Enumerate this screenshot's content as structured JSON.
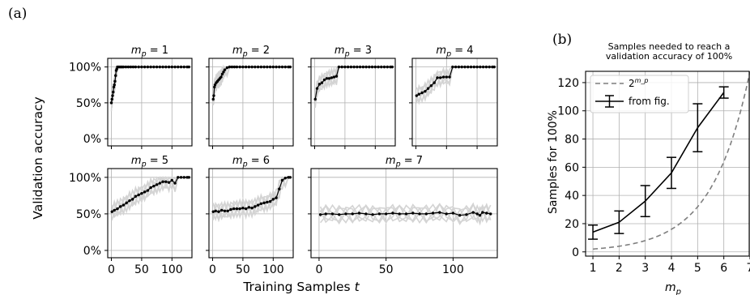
{
  "panel_labels": {
    "a": "(a)",
    "b": "(b)"
  },
  "chart_data": [
    {
      "type": "line",
      "panel": "(a)",
      "ylabel": "Validation accuracy",
      "xlabel": "Training Samples t",
      "y_tick_labels": [
        "0%",
        "50%",
        "100%"
      ],
      "x_tick_labels": [
        "0",
        "50",
        "100"
      ],
      "ylim": [
        -0.1,
        1.12
      ],
      "grid": true,
      "subplots": [
        {
          "title": "m_p = 1",
          "mp": "1",
          "xlim": [
            -6,
            133
          ],
          "series": [
            {
              "x": [
                0,
                1,
                2,
                3,
                4,
                5,
                6,
                7,
                8,
                9,
                10,
                12,
                14,
                16,
                18,
                20,
                24,
                28,
                32,
                36,
                40,
                45,
                50,
                55,
                60,
                65,
                70,
                75,
                80,
                85,
                90,
                95,
                100,
                105,
                110,
                115,
                120,
                125,
                128
              ],
              "y": [
                0.5,
                0.55,
                0.6,
                0.65,
                0.72,
                0.75,
                0.8,
                0.88,
                0.95,
                0.97,
                1,
                1,
                1,
                1,
                1,
                1,
                1,
                1,
                1,
                1,
                1,
                1,
                1,
                1,
                1,
                1,
                1,
                1,
                1,
                1,
                1,
                1,
                1,
                1,
                1,
                1,
                1,
                1,
                1
              ]
            }
          ]
        },
        {
          "title": "m_p = 2",
          "mp": "2",
          "xlim": [
            -6,
            133
          ],
          "series": [
            {
              "x": [
                1,
                2,
                3,
                4,
                6,
                8,
                10,
                12,
                14,
                16,
                18,
                20,
                24,
                28,
                32,
                36,
                40,
                45,
                50,
                55,
                60,
                65,
                70,
                75,
                80,
                85,
                90,
                95,
                100,
                105,
                110,
                115,
                120,
                125,
                128
              ],
              "y": [
                0.55,
                0.6,
                0.72,
                0.75,
                0.78,
                0.8,
                0.82,
                0.84,
                0.86,
                0.9,
                0.93,
                0.96,
                0.99,
                1,
                1,
                1,
                1,
                1,
                1,
                1,
                1,
                1,
                1,
                1,
                1,
                1,
                1,
                1,
                1,
                1,
                1,
                1,
                1,
                1,
                1
              ]
            }
          ]
        },
        {
          "title": "m_p = 3",
          "mp": "3",
          "xlim": [
            -6,
            133
          ],
          "series": [
            {
              "x": [
                1,
                4,
                8,
                12,
                16,
                20,
                24,
                28,
                32,
                36,
                40,
                45,
                50,
                55,
                60,
                65,
                70,
                75,
                80,
                85,
                90,
                95,
                100,
                105,
                110,
                115,
                120,
                125,
                128
              ],
              "y": [
                0.55,
                0.7,
                0.76,
                0.78,
                0.82,
                0.84,
                0.84,
                0.85,
                0.86,
                0.87,
                1,
                1,
                1,
                1,
                1,
                1,
                1,
                1,
                1,
                1,
                1,
                1,
                1,
                1,
                1,
                1,
                1,
                1,
                1
              ]
            }
          ]
        },
        {
          "title": "m_p = 4",
          "mp": "4",
          "xlim": [
            -6,
            133
          ],
          "series": [
            {
              "x": [
                1,
                5,
                10,
                15,
                20,
                25,
                30,
                35,
                40,
                45,
                50,
                55,
                60,
                65,
                70,
                75,
                80,
                85,
                90,
                95,
                100,
                105,
                110,
                115,
                120,
                125,
                128
              ],
              "y": [
                0.6,
                0.62,
                0.64,
                0.66,
                0.7,
                0.74,
                0.78,
                0.85,
                0.85,
                0.86,
                0.86,
                0.86,
                1,
                1,
                1,
                1,
                1,
                1,
                1,
                1,
                1,
                1,
                1,
                1,
                1,
                1,
                1
              ]
            }
          ]
        },
        {
          "title": "m_p = 5",
          "mp": "5",
          "xlim": [
            -6,
            133
          ],
          "series": [
            {
              "x": [
                1,
                5,
                10,
                15,
                20,
                25,
                30,
                35,
                40,
                45,
                50,
                55,
                60,
                65,
                70,
                75,
                80,
                85,
                90,
                95,
                100,
                105,
                110,
                115,
                120,
                125,
                128
              ],
              "y": [
                0.53,
                0.55,
                0.57,
                0.6,
                0.62,
                0.65,
                0.68,
                0.7,
                0.74,
                0.76,
                0.78,
                0.8,
                0.82,
                0.86,
                0.88,
                0.9,
                0.92,
                0.94,
                0.94,
                0.93,
                0.96,
                0.92,
                1,
                1,
                1,
                1,
                1
              ]
            }
          ]
        },
        {
          "title": "m_p = 6",
          "mp": "6",
          "xlim": [
            -6,
            133
          ],
          "series": [
            {
              "x": [
                1,
                5,
                10,
                15,
                20,
                25,
                30,
                35,
                40,
                45,
                50,
                55,
                60,
                65,
                70,
                75,
                80,
                85,
                90,
                95,
                100,
                105,
                110,
                115,
                120,
                125,
                128
              ],
              "y": [
                0.53,
                0.54,
                0.53,
                0.55,
                0.54,
                0.54,
                0.56,
                0.57,
                0.57,
                0.57,
                0.58,
                0.57,
                0.59,
                0.58,
                0.6,
                0.62,
                0.64,
                0.65,
                0.66,
                0.67,
                0.7,
                0.72,
                0.84,
                0.96,
                0.99,
                1,
                1
              ]
            }
          ]
        },
        {
          "title": "m_p = 7",
          "mp": "7",
          "xlim": [
            -6,
            133
          ],
          "series": [
            {
              "x": [
                1,
                5,
                10,
                15,
                20,
                25,
                30,
                35,
                40,
                45,
                50,
                55,
                60,
                65,
                70,
                75,
                80,
                85,
                90,
                95,
                100,
                105,
                110,
                115,
                118,
                120,
                122,
                125,
                128
              ],
              "y": [
                0.49,
                0.5,
                0.5,
                0.49,
                0.5,
                0.5,
                0.51,
                0.5,
                0.49,
                0.5,
                0.5,
                0.51,
                0.5,
                0.5,
                0.51,
                0.5,
                0.5,
                0.51,
                0.52,
                0.5,
                0.51,
                0.48,
                0.49,
                0.52,
                0.5,
                0.48,
                0.52,
                0.51,
                0.5
              ]
            }
          ]
        }
      ]
    },
    {
      "type": "line",
      "panel": "(b)",
      "title": "Samples needed to reach a validation accuracy of 100%",
      "title_lines": [
        "Samples needed to reach a",
        "validation accuracy of 100%"
      ],
      "xlabel": "m_p",
      "ylabel": "Samples for 100%",
      "xlim": [
        0.72,
        7.0
      ],
      "ylim": [
        -3,
        128
      ],
      "x_ticks": [
        1,
        2,
        3,
        4,
        5,
        6,
        7
      ],
      "y_ticks": [
        0,
        20,
        40,
        60,
        80,
        100,
        120
      ],
      "grid": true,
      "legend_position": "top-left",
      "series": [
        {
          "name": "2^{m_p}",
          "legend_base": "2",
          "legend_exp": "m_p",
          "style": "dashed",
          "color": "#7f7f7f",
          "function": "2^x"
        },
        {
          "name": "from fig.",
          "style": "solid-errorbar",
          "color": "#000000",
          "x": [
            1,
            2,
            3,
            4,
            5,
            6
          ],
          "y": [
            14,
            21,
            36,
            56,
            88,
            113
          ],
          "err": [
            5,
            8,
            11,
            11,
            17,
            4
          ]
        }
      ]
    }
  ]
}
